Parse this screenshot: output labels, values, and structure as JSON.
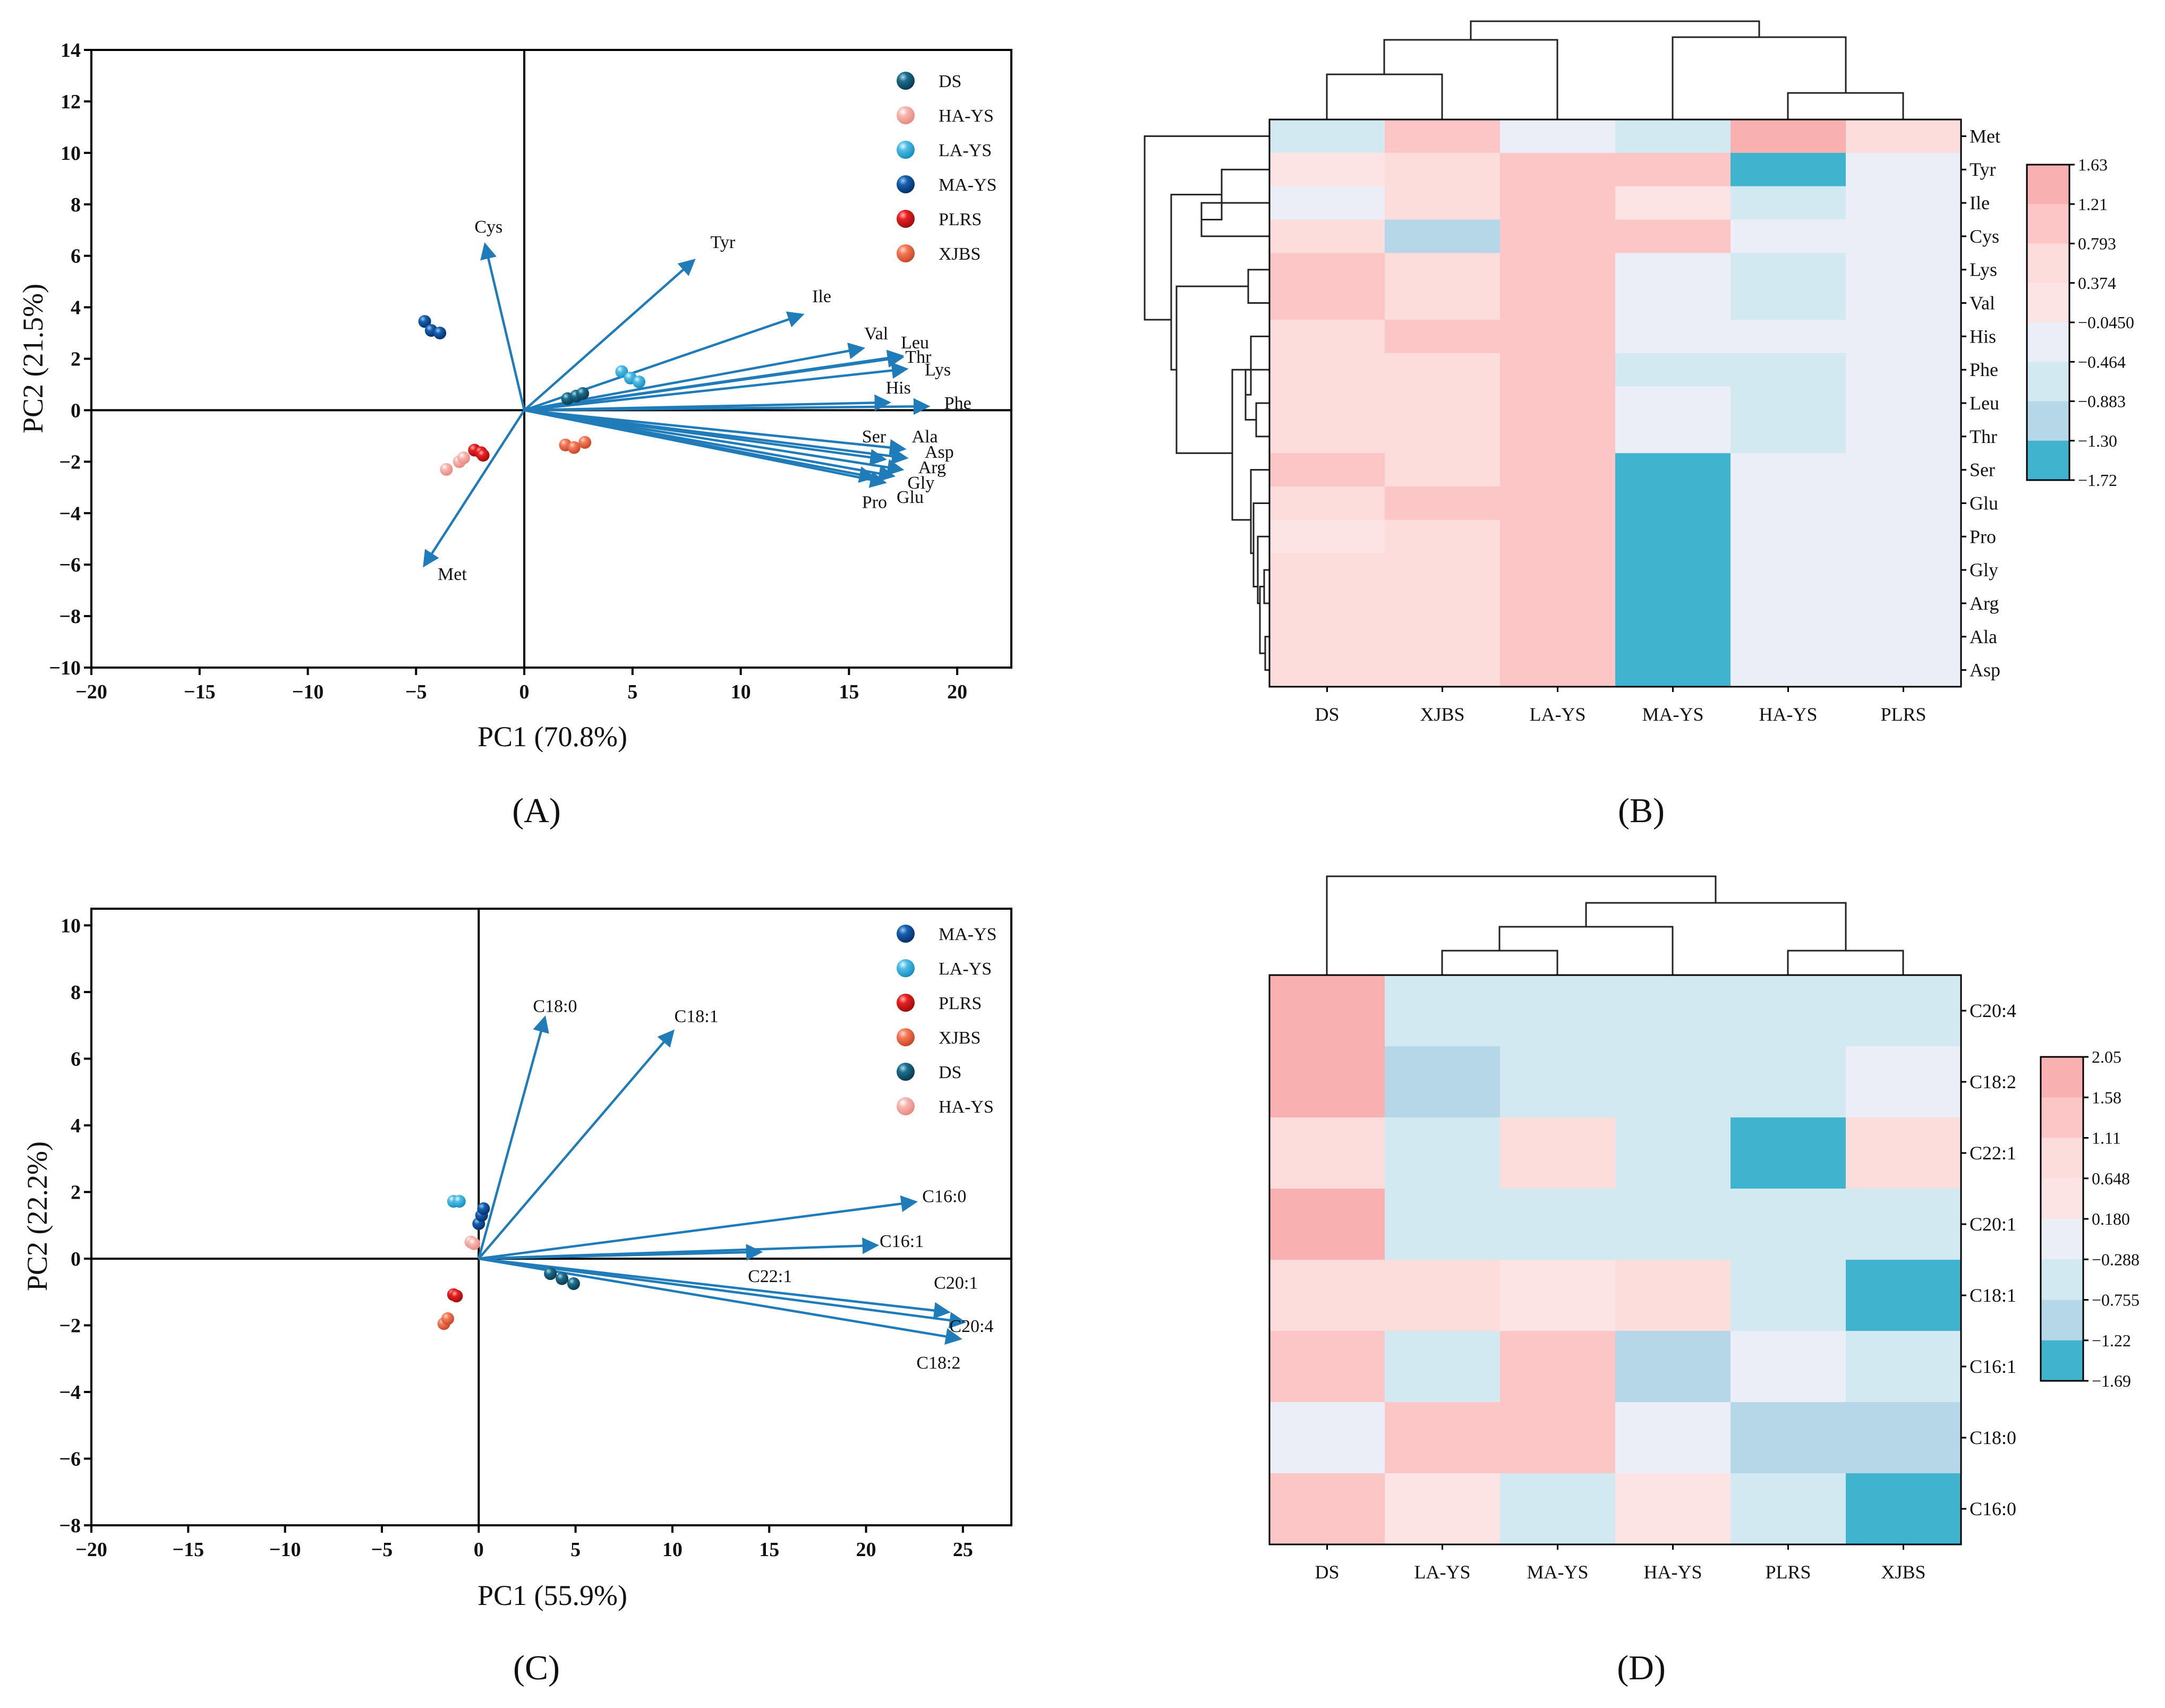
{
  "chart_data": [
    {
      "panel": "A",
      "type": "scatter",
      "title": "",
      "xlabel": "PC1 (70.8%)",
      "ylabel": "PC2 (21.5%)",
      "xlim": [
        -20,
        22.5
      ],
      "ylim": [
        -10,
        14
      ],
      "xticks": [
        -20,
        -15,
        -10,
        -5,
        0,
        5,
        10,
        15,
        20
      ],
      "yticks": [
        -10,
        -8,
        -6,
        -4,
        -2,
        0,
        2,
        4,
        6,
        8,
        10,
        12,
        14
      ],
      "legend": [
        "DS",
        "HA-YS",
        "LA-YS",
        "MA-YS",
        "PLRS",
        "XJBS"
      ],
      "series": [
        {
          "name": "DS",
          "color": "#0e4f6b",
          "points": [
            [
              2.0,
              0.45
            ],
            [
              2.4,
              0.55
            ],
            [
              2.7,
              0.65
            ]
          ]
        },
        {
          "name": "HA-YS",
          "color": "#f4a6a0",
          "points": [
            [
              -3.6,
              -2.3
            ],
            [
              -3.0,
              -2.0
            ],
            [
              -2.8,
              -1.85
            ]
          ]
        },
        {
          "name": "LA-YS",
          "color": "#3eb1dc",
          "points": [
            [
              4.5,
              1.5
            ],
            [
              4.9,
              1.25
            ],
            [
              5.3,
              1.1
            ]
          ]
        },
        {
          "name": "MA-YS",
          "color": "#0d4d96",
          "points": [
            [
              -4.6,
              3.45
            ],
            [
              -4.3,
              3.1
            ],
            [
              -3.9,
              3.0
            ]
          ]
        },
        {
          "name": "PLRS",
          "color": "#e01b22",
          "points": [
            [
              -2.3,
              -1.55
            ],
            [
              -2.0,
              -1.65
            ],
            [
              -1.9,
              -1.75
            ]
          ]
        },
        {
          "name": "XJBS",
          "color": "#f07050",
          "points": [
            [
              1.9,
              -1.35
            ],
            [
              2.3,
              -1.45
            ],
            [
              2.8,
              -1.25
            ]
          ]
        }
      ],
      "vectors": [
        {
          "name": "Cys",
          "x": -1.8,
          "y": 6.4
        },
        {
          "name": "Tyr",
          "x": 7.8,
          "y": 5.8
        },
        {
          "name": "Ile",
          "x": 12.8,
          "y": 3.7
        },
        {
          "name": "Val",
          "x": 15.6,
          "y": 2.4
        },
        {
          "name": "Leu",
          "x": 17.4,
          "y": 2.1
        },
        {
          "name": "Thr",
          "x": 17.4,
          "y": 2.05
        },
        {
          "name": "Lys",
          "x": 17.6,
          "y": 1.6
        },
        {
          "name": "His",
          "x": 16.8,
          "y": 0.3
        },
        {
          "name": "Phe",
          "x": 18.6,
          "y": 0.15
        },
        {
          "name": "Ser",
          "x": 16.6,
          "y": -1.9
        },
        {
          "name": "Ala",
          "x": 17.5,
          "y": -1.5
        },
        {
          "name": "Asp",
          "x": 17.6,
          "y": -1.85
        },
        {
          "name": "Arg",
          "x": 17.4,
          "y": -2.3
        },
        {
          "name": "Gly",
          "x": 17.0,
          "y": -2.55
        },
        {
          "name": "Glu",
          "x": 16.6,
          "y": -2.8
        },
        {
          "name": "Pro",
          "x": 16.1,
          "y": -2.6
        },
        {
          "name": "Met",
          "x": -4.6,
          "y": -6.0
        }
      ]
    },
    {
      "panel": "B",
      "type": "heatmap",
      "columns": [
        "DS",
        "XJBS",
        "LA-YS",
        "MA-YS",
        "HA-YS",
        "PLRS"
      ],
      "rows": [
        "Met",
        "Tyr",
        "Ile",
        "Cys",
        "Lys",
        "Val",
        "His",
        "Phe",
        "Leu",
        "Thr",
        "Ser",
        "Glu",
        "Pro",
        "Gly",
        "Arg",
        "Ala",
        "Asp"
      ],
      "values": [
        [
          -0.88,
          0.9,
          -0.46,
          -0.88,
          1.25,
          0.45
        ],
        [
          0.3,
          0.38,
          0.85,
          0.85,
          -1.72,
          -0.4
        ],
        [
          -0.1,
          0.5,
          1.05,
          0.35,
          -0.88,
          -0.46
        ],
        [
          0.38,
          -0.9,
          0.95,
          1.05,
          -0.1,
          -0.46
        ],
        [
          0.85,
          0.4,
          0.95,
          -0.46,
          -0.88,
          -0.46
        ],
        [
          1.05,
          0.4,
          0.95,
          -0.1,
          -0.88,
          -0.46
        ],
        [
          0.45,
          0.85,
          0.95,
          -0.46,
          -0.46,
          -0.46
        ],
        [
          0.45,
          0.45,
          0.95,
          -0.88,
          -0.88,
          -0.46
        ],
        [
          0.45,
          0.45,
          0.95,
          -0.46,
          -0.88,
          -0.46
        ],
        [
          0.45,
          0.45,
          0.95,
          -0.46,
          -0.88,
          -0.46
        ],
        [
          0.95,
          0.45,
          0.95,
          -1.72,
          -0.46,
          -0.1
        ],
        [
          0.5,
          0.85,
          0.95,
          -1.72,
          -0.1,
          -0.1
        ],
        [
          0.35,
          0.45,
          1.05,
          -1.72,
          -0.1,
          -0.1
        ],
        [
          0.45,
          0.45,
          0.85,
          -1.72,
          -0.1,
          -0.1
        ],
        [
          0.45,
          0.45,
          1.05,
          -1.72,
          -0.1,
          -0.1
        ],
        [
          0.45,
          0.45,
          1.05,
          -1.72,
          -0.46,
          -0.1
        ],
        [
          0.45,
          0.45,
          1.05,
          -1.72,
          -0.46,
          -0.1
        ]
      ],
      "colorbar": [
        "1.63",
        "1.21",
        "0.793",
        "0.374",
        "−0.0450",
        "−0.464",
        "−0.883",
        "−1.30",
        "−1.72"
      ],
      "colorbar_range": [
        -1.72,
        1.63
      ]
    },
    {
      "panel": "C",
      "type": "scatter",
      "title": "",
      "xlabel": "PC1 (55.9%)",
      "ylabel": "PC2 (22.2%)",
      "xlim": [
        -20,
        27.5
      ],
      "ylim": [
        -8,
        10.5
      ],
      "xticks": [
        -20,
        -15,
        -10,
        -5,
        0,
        5,
        10,
        15,
        20,
        25
      ],
      "yticks": [
        -8,
        -6,
        -4,
        -2,
        0,
        2,
        4,
        6,
        8,
        10
      ],
      "legend": [
        "MA-YS",
        "LA-YS",
        "PLRS",
        "XJBS",
        "DS",
        "HA-YS"
      ],
      "series": [
        {
          "name": "MA-YS",
          "color": "#0d4d96",
          "points": [
            [
              0.0,
              1.05
            ],
            [
              0.15,
              1.3
            ],
            [
              0.25,
              1.5
            ]
          ]
        },
        {
          "name": "LA-YS",
          "color": "#3eb1dc",
          "points": [
            [
              -1.3,
              1.72
            ],
            [
              -1.0,
              1.72
            ]
          ]
        },
        {
          "name": "PLRS",
          "color": "#e01b22",
          "points": [
            [
              -1.3,
              -1.08
            ],
            [
              -1.15,
              -1.12
            ]
          ]
        },
        {
          "name": "XJBS",
          "color": "#f07050",
          "points": [
            [
              -1.8,
              -1.95
            ],
            [
              -1.6,
              -1.8
            ]
          ]
        },
        {
          "name": "DS",
          "color": "#0e4f6b",
          "points": [
            [
              3.7,
              -0.45
            ],
            [
              4.3,
              -0.6
            ],
            [
              4.9,
              -0.75
            ]
          ]
        },
        {
          "name": "HA-YS",
          "color": "#f4a6a0",
          "points": [
            [
              -0.4,
              0.5
            ],
            [
              -0.25,
              0.45
            ]
          ]
        }
      ],
      "vectors": [
        {
          "name": "C18:0",
          "x": 3.4,
          "y": 7.2
        },
        {
          "name": "C18:1",
          "x": 10.0,
          "y": 6.8
        },
        {
          "name": "C16:0",
          "x": 22.5,
          "y": 1.7
        },
        {
          "name": "C16:1",
          "x": 20.5,
          "y": 0.4
        },
        {
          "name": "C22:1",
          "x": 14.5,
          "y": 0.2
        },
        {
          "name": "C20:1",
          "x": 24.2,
          "y": -1.6
        },
        {
          "name": "C20:4",
          "x": 25.0,
          "y": -1.9
        },
        {
          "name": "C18:2",
          "x": 24.8,
          "y": -2.4
        }
      ]
    },
    {
      "panel": "D",
      "type": "heatmap",
      "columns": [
        "DS",
        "LA-YS",
        "MA-YS",
        "HA-YS",
        "PLRS",
        "XJBS"
      ],
      "rows": [
        "C20:4",
        "C18:2",
        "C22:1",
        "C20:1",
        "C18:1",
        "C16:1",
        "C18:0",
        "C16:0"
      ],
      "values": [
        [
          1.7,
          -0.5,
          -0.5,
          -0.5,
          -0.5,
          -0.5
        ],
        [
          1.7,
          -0.95,
          -0.5,
          -0.5,
          -0.5,
          -0.05
        ],
        [
          0.85,
          -0.5,
          0.8,
          -0.5,
          -1.69,
          0.85
        ],
        [
          1.7,
          -0.5,
          -0.5,
          -0.5,
          -0.5,
          -0.5
        ],
        [
          0.8,
          0.8,
          0.4,
          0.8,
          -0.5,
          -1.69
        ],
        [
          1.35,
          -0.5,
          1.35,
          -0.95,
          -0.05,
          -0.5
        ],
        [
          -0.05,
          1.35,
          1.35,
          -0.05,
          -0.95,
          -0.95
        ],
        [
          1.35,
          0.4,
          -0.5,
          0.4,
          -0.5,
          -1.69
        ]
      ],
      "colorbar": [
        "2.05",
        "1.58",
        "1.11",
        "0.648",
        "0.180",
        "−0.288",
        "−0.755",
        "−1.22",
        "−1.69"
      ],
      "colorbar_range": [
        -1.69,
        2.05
      ]
    }
  ],
  "panels": {
    "A": {
      "label": "(A)"
    },
    "B": {
      "label": "(B)"
    },
    "C": {
      "label": "(C)"
    },
    "D": {
      "label": "(D)"
    }
  }
}
